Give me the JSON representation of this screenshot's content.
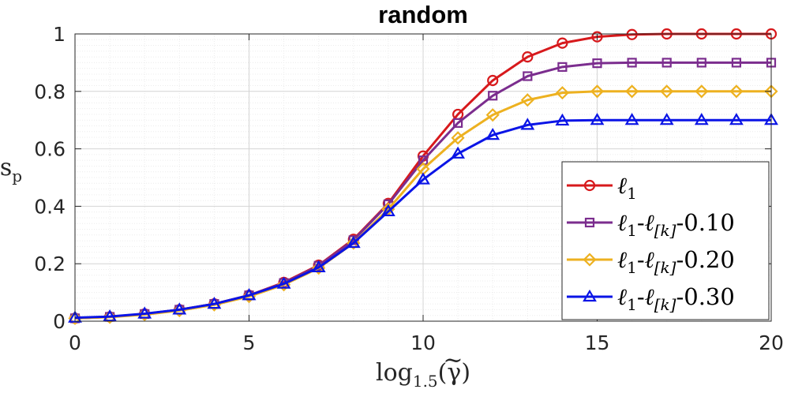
{
  "chart_data": {
    "type": "line",
    "title": "random",
    "xlabel": "log1.5(γ̃)",
    "xlabel_parts": {
      "main": "log",
      "sub": "1.5",
      "open": "(",
      "var": "γ",
      "tilde": "~",
      "close": ")"
    },
    "ylabel": "sp",
    "ylabel_parts": {
      "main": "s",
      "sub": "p"
    },
    "xlim": [
      0,
      20
    ],
    "ylim": [
      0,
      1
    ],
    "xticks": [
      0,
      5,
      10,
      15,
      20
    ],
    "xtick_labels": [
      "0",
      "5",
      "10",
      "15",
      "20"
    ],
    "yticks": [
      0,
      0.2,
      0.4,
      0.6,
      0.8,
      1
    ],
    "ytick_labels": [
      "0",
      "0.2",
      "0.4",
      "0.6",
      "0.8",
      "1"
    ],
    "grid": true,
    "minor_grid": true,
    "legend_position": "bottom-right",
    "x": [
      0,
      1,
      2,
      3,
      4,
      5,
      6,
      7,
      8,
      9,
      10,
      11,
      12,
      13,
      14,
      15,
      16,
      17,
      18,
      19,
      20
    ],
    "series": [
      {
        "name": "ℓ1",
        "legend": {
          "base": "ℓ",
          "sub1": "1",
          "rest": ""
        },
        "color": "#d7191c",
        "marker": "circle",
        "values": [
          0.01,
          0.015,
          0.025,
          0.04,
          0.06,
          0.09,
          0.135,
          0.195,
          0.285,
          0.41,
          0.575,
          0.72,
          0.838,
          0.92,
          0.968,
          0.99,
          0.998,
          1.0,
          1.0,
          1.0,
          1.0
        ]
      },
      {
        "name": "ℓ1-ℓ[k]-0.10",
        "legend": {
          "base": "ℓ",
          "sub1": "1",
          "mid": "-ℓ",
          "sub2": "[k]",
          "rest": "-0.10"
        },
        "color": "#7b2d8e",
        "marker": "square",
        "values": [
          0.01,
          0.015,
          0.025,
          0.04,
          0.06,
          0.09,
          0.133,
          0.193,
          0.282,
          0.407,
          0.56,
          0.69,
          0.785,
          0.853,
          0.885,
          0.898,
          0.9,
          0.9,
          0.9,
          0.9,
          0.9
        ]
      },
      {
        "name": "ℓ1-ℓ[k]-0.20",
        "legend": {
          "base": "ℓ",
          "sub1": "1",
          "mid": "-ℓ",
          "sub2": "[k]",
          "rest": "-0.20"
        },
        "color": "#edb120",
        "marker": "diamond",
        "values": [
          0.01,
          0.014,
          0.023,
          0.037,
          0.057,
          0.086,
          0.127,
          0.185,
          0.272,
          0.39,
          0.53,
          0.638,
          0.718,
          0.77,
          0.795,
          0.8,
          0.8,
          0.8,
          0.8,
          0.8,
          0.8
        ]
      },
      {
        "name": "ℓ1-ℓ[k]-0.30",
        "legend": {
          "base": "ℓ",
          "sub1": "1",
          "mid": "-ℓ",
          "sub2": "[k]",
          "rest": "-0.30"
        },
        "color": "#0a14e6",
        "marker": "triangle",
        "values": [
          0.012,
          0.016,
          0.026,
          0.04,
          0.06,
          0.09,
          0.13,
          0.187,
          0.272,
          0.382,
          0.493,
          0.583,
          0.648,
          0.683,
          0.698,
          0.7,
          0.7,
          0.7,
          0.7,
          0.7,
          0.7
        ]
      }
    ]
  }
}
